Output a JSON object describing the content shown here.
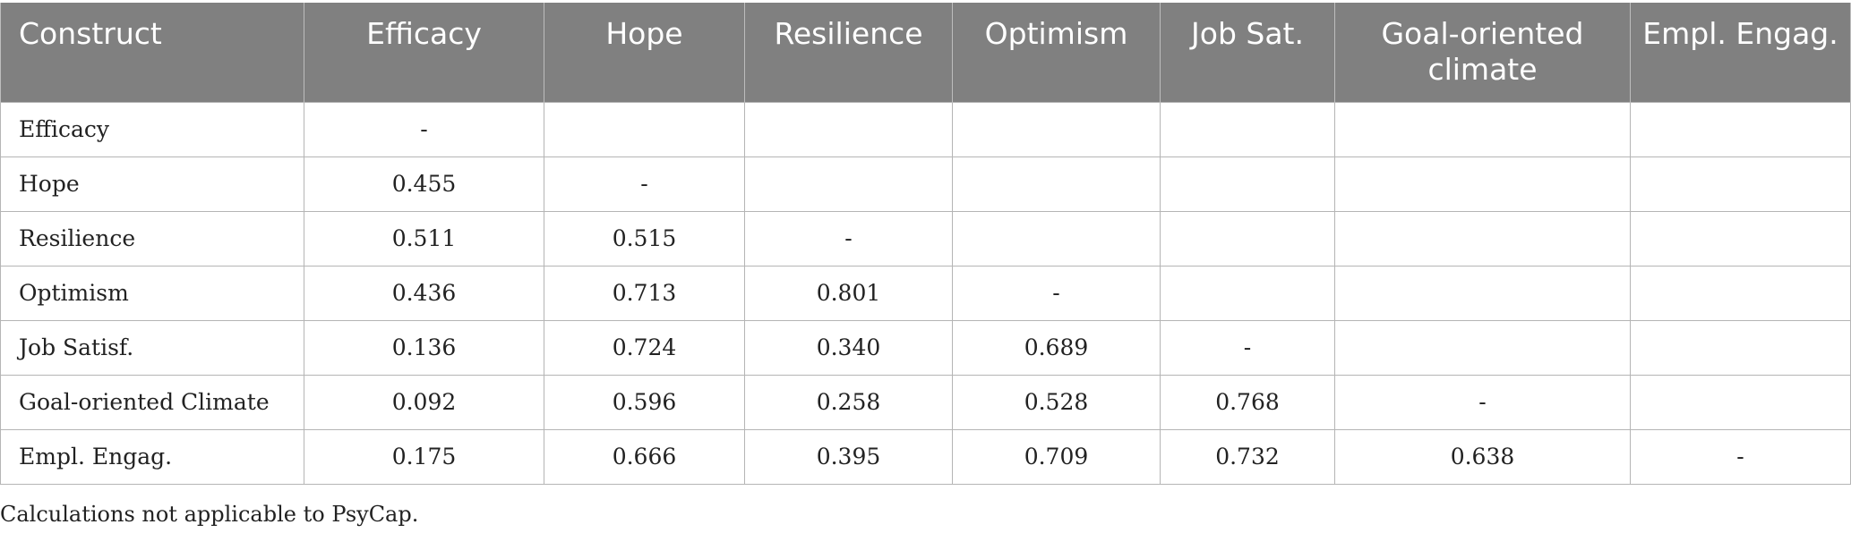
{
  "table": {
    "headers": [
      "Construct",
      "Efficacy",
      "Hope",
      "Resilience",
      "Optimism",
      "Job Sat.",
      "Goal-oriented climate",
      "Empl. Engag."
    ],
    "rows": [
      {
        "label": "Efficacy",
        "cells": [
          "-",
          "",
          "",
          "",
          "",
          "",
          ""
        ]
      },
      {
        "label": "Hope",
        "cells": [
          "0.455",
          "-",
          "",
          "",
          "",
          "",
          ""
        ]
      },
      {
        "label": "Resilience",
        "cells": [
          "0.511",
          "0.515",
          "-",
          "",
          "",
          "",
          ""
        ]
      },
      {
        "label": "Optimism",
        "cells": [
          "0.436",
          "0.713",
          "0.801",
          "-",
          "",
          "",
          ""
        ]
      },
      {
        "label": "Job Satisf.",
        "cells": [
          "0.136",
          "0.724",
          "0.340",
          "0.689",
          "-",
          "",
          ""
        ]
      },
      {
        "label": "Goal-oriented Climate",
        "cells": [
          "0.092",
          "0.596",
          "0.258",
          "0.528",
          "0.768",
          "-",
          ""
        ]
      },
      {
        "label": "Empl. Engag.",
        "cells": [
          "0.175",
          "0.666",
          "0.395",
          "0.709",
          "0.732",
          "0.638",
          "-"
        ]
      }
    ]
  },
  "footnote": "Calculations not applicable to PsyCap.",
  "colors": {
    "header_bg": "#808080",
    "header_text": "#ffffff",
    "grid": "#b5b5b5"
  }
}
